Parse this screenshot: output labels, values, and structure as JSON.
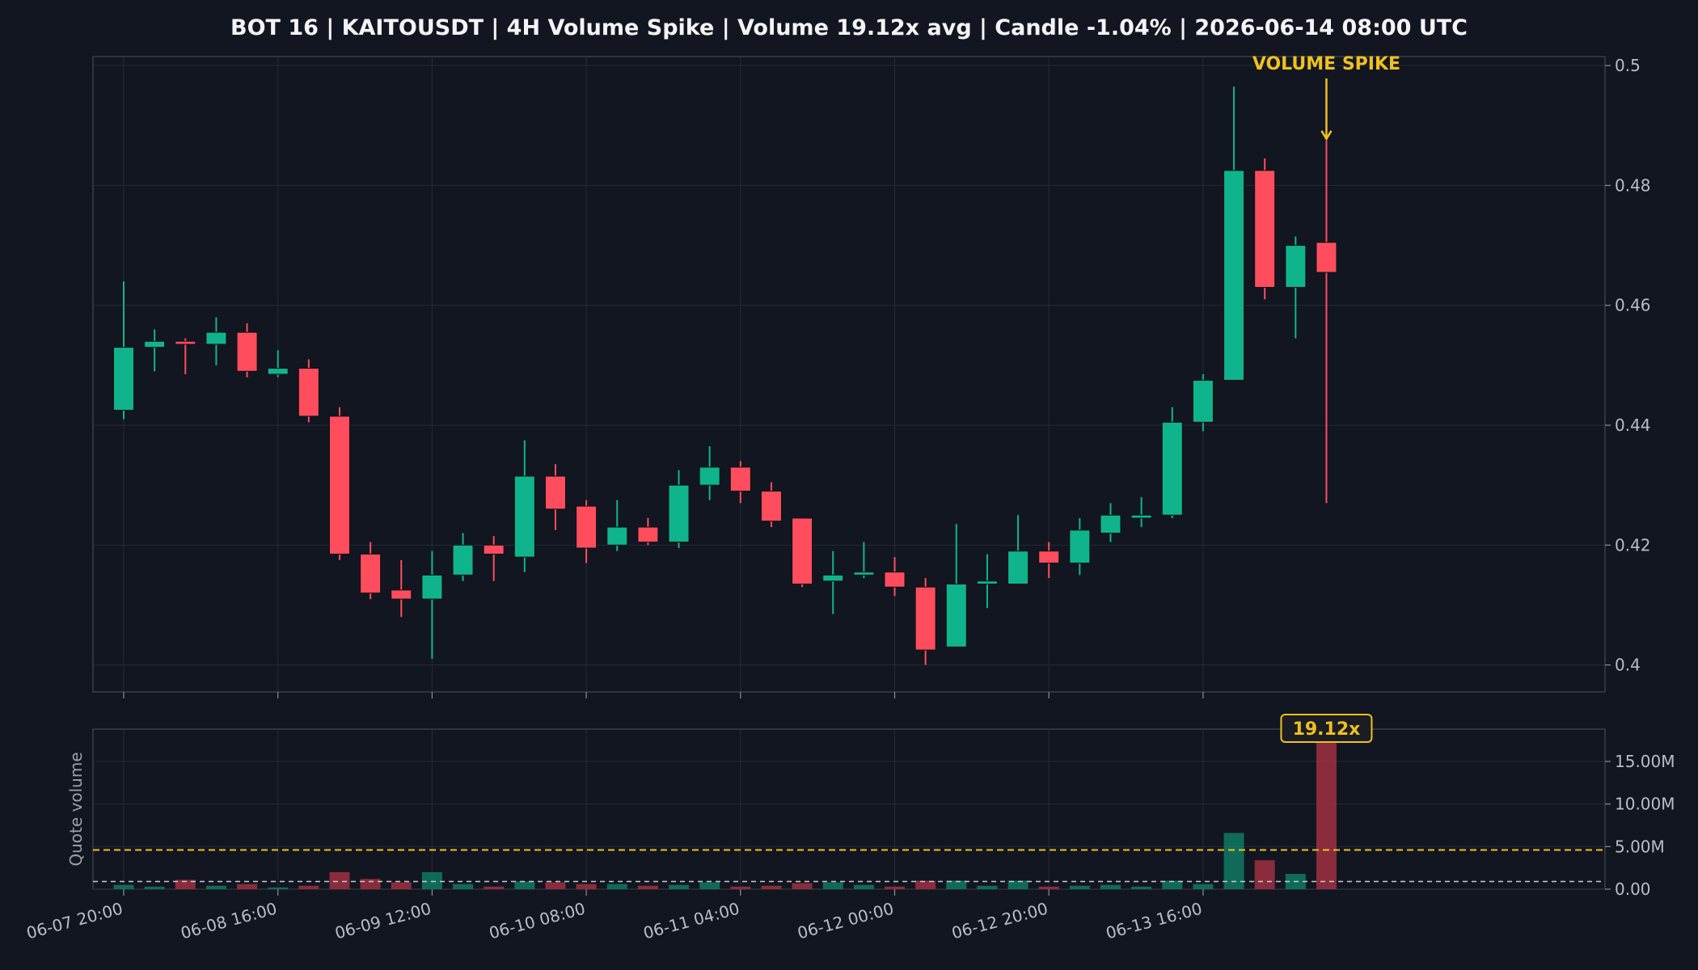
{
  "chart_data": {
    "type": "candlestick",
    "title": "BOT 16 | KAITOUSDT | 4H Volume Spike | Volume 19.12x avg | Candle -1.04% | 2026-06-14 08:00 UTC",
    "colors": {
      "up": "#10b48c",
      "down": "#ff4d5e",
      "accent": "#f0c020",
      "background": "#121620",
      "grid": "#262b35"
    },
    "price_ylim": [
      0.3955,
      0.5015
    ],
    "price_yticks": [
      "0.4",
      "0.42",
      "0.44",
      "0.46",
      "0.48",
      "0.5"
    ],
    "volume_ylim": [
      0,
      18.8
    ],
    "volume_yticks": [
      "0.00",
      "5.00M",
      "10.00M",
      "15.00M"
    ],
    "volume_ylabel": "Quote volume",
    "x_tick_labels": [
      "06-07 20:00",
      "06-08 16:00",
      "06-09 12:00",
      "06-10 08:00",
      "06-11 04:00",
      "06-12 00:00",
      "06-12 20:00",
      "06-13 16:00"
    ],
    "x_tick_every": 5,
    "avg_volume_line": 0.9,
    "spike_threshold_line": 4.6,
    "annotation": {
      "text": "VOLUME SPIKE",
      "candle_index": 39
    },
    "volume_badge": "19.12x",
    "candles": [
      {
        "o": 0.4425,
        "h": 0.464,
        "l": 0.441,
        "c": 0.453,
        "v": 0.5
      },
      {
        "o": 0.453,
        "h": 0.456,
        "l": 0.449,
        "c": 0.454,
        "v": 0.3
      },
      {
        "o": 0.454,
        "h": 0.4545,
        "l": 0.4485,
        "c": 0.4535,
        "v": 1.1
      },
      {
        "o": 0.4535,
        "h": 0.458,
        "l": 0.45,
        "c": 0.4555,
        "v": 0.4
      },
      {
        "o": 0.4555,
        "h": 0.457,
        "l": 0.448,
        "c": 0.449,
        "v": 0.6
      },
      {
        "o": 0.4485,
        "h": 0.4525,
        "l": 0.448,
        "c": 0.4495,
        "v": 0.2
      },
      {
        "o": 0.4495,
        "h": 0.451,
        "l": 0.4405,
        "c": 0.4415,
        "v": 0.4
      },
      {
        "o": 0.4415,
        "h": 0.443,
        "l": 0.4175,
        "c": 0.4185,
        "v": 2.0
      },
      {
        "o": 0.4185,
        "h": 0.4205,
        "l": 0.411,
        "c": 0.412,
        "v": 1.2
      },
      {
        "o": 0.4125,
        "h": 0.4175,
        "l": 0.408,
        "c": 0.411,
        "v": 0.8
      },
      {
        "o": 0.411,
        "h": 0.419,
        "l": 0.401,
        "c": 0.415,
        "v": 2.0
      },
      {
        "o": 0.415,
        "h": 0.422,
        "l": 0.414,
        "c": 0.42,
        "v": 0.6
      },
      {
        "o": 0.42,
        "h": 0.4215,
        "l": 0.414,
        "c": 0.4185,
        "v": 0.3
      },
      {
        "o": 0.418,
        "h": 0.4375,
        "l": 0.4155,
        "c": 0.4315,
        "v": 0.9
      },
      {
        "o": 0.4315,
        "h": 0.4335,
        "l": 0.4225,
        "c": 0.426,
        "v": 0.8
      },
      {
        "o": 0.4265,
        "h": 0.4275,
        "l": 0.417,
        "c": 0.4195,
        "v": 0.6
      },
      {
        "o": 0.42,
        "h": 0.4275,
        "l": 0.419,
        "c": 0.423,
        "v": 0.6
      },
      {
        "o": 0.423,
        "h": 0.4245,
        "l": 0.42,
        "c": 0.4205,
        "v": 0.4
      },
      {
        "o": 0.4205,
        "h": 0.4325,
        "l": 0.4195,
        "c": 0.43,
        "v": 0.5
      },
      {
        "o": 0.43,
        "h": 0.4365,
        "l": 0.4275,
        "c": 0.433,
        "v": 0.8
      },
      {
        "o": 0.433,
        "h": 0.434,
        "l": 0.427,
        "c": 0.429,
        "v": 0.3
      },
      {
        "o": 0.429,
        "h": 0.4305,
        "l": 0.423,
        "c": 0.424,
        "v": 0.4
      },
      {
        "o": 0.4245,
        "h": 0.4245,
        "l": 0.413,
        "c": 0.4135,
        "v": 0.7
      },
      {
        "o": 0.414,
        "h": 0.419,
        "l": 0.4085,
        "c": 0.415,
        "v": 0.8
      },
      {
        "o": 0.415,
        "h": 0.4205,
        "l": 0.4145,
        "c": 0.4155,
        "v": 0.5
      },
      {
        "o": 0.4155,
        "h": 0.418,
        "l": 0.4115,
        "c": 0.413,
        "v": 0.3
      },
      {
        "o": 0.413,
        "h": 0.4145,
        "l": 0.4,
        "c": 0.4025,
        "v": 1.0
      },
      {
        "o": 0.403,
        "h": 0.4235,
        "l": 0.403,
        "c": 0.4135,
        "v": 1.0
      },
      {
        "o": 0.4135,
        "h": 0.4185,
        "l": 0.4095,
        "c": 0.414,
        "v": 0.4
      },
      {
        "o": 0.4135,
        "h": 0.425,
        "l": 0.4135,
        "c": 0.419,
        "v": 1.0
      },
      {
        "o": 0.419,
        "h": 0.4205,
        "l": 0.4145,
        "c": 0.417,
        "v": 0.3
      },
      {
        "o": 0.417,
        "h": 0.4245,
        "l": 0.415,
        "c": 0.4225,
        "v": 0.4
      },
      {
        "o": 0.422,
        "h": 0.427,
        "l": 0.4205,
        "c": 0.425,
        "v": 0.5
      },
      {
        "o": 0.4245,
        "h": 0.428,
        "l": 0.423,
        "c": 0.425,
        "v": 0.3
      },
      {
        "o": 0.425,
        "h": 0.443,
        "l": 0.4245,
        "c": 0.4405,
        "v": 1.0
      },
      {
        "o": 0.4405,
        "h": 0.4485,
        "l": 0.439,
        "c": 0.4475,
        "v": 0.6
      },
      {
        "o": 0.4475,
        "h": 0.4965,
        "l": 0.4475,
        "c": 0.4825,
        "v": 6.6
      },
      {
        "o": 0.4825,
        "h": 0.4845,
        "l": 0.461,
        "c": 0.463,
        "v": 3.4
      },
      {
        "o": 0.463,
        "h": 0.4715,
        "l": 0.4545,
        "c": 0.47,
        "v": 1.8
      },
      {
        "o": 0.4705,
        "h": 0.4875,
        "l": 0.427,
        "c": 0.4655,
        "v": 17.9
      }
    ]
  }
}
